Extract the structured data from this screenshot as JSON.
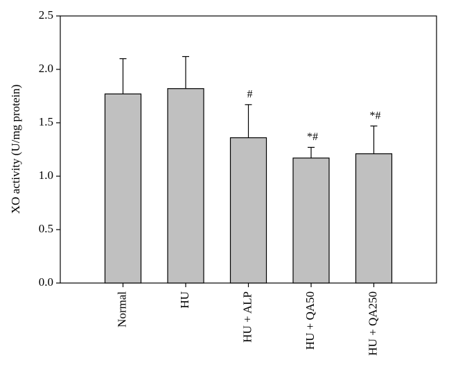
{
  "chart_data": {
    "type": "bar",
    "y_label": "XO activity (U/mg protein)",
    "categories": [
      "Normal",
      "HU",
      "HU + ALP",
      "HU + QA50",
      "HU + QA250"
    ],
    "values": [
      1.77,
      1.82,
      1.36,
      1.17,
      1.21
    ],
    "errors": [
      0.33,
      0.3,
      0.31,
      0.1,
      0.26
    ],
    "annotations": [
      null,
      null,
      "#",
      "*#",
      "*#"
    ],
    "color": "#c0c0c0",
    "ylim": [
      0,
      2.5
    ],
    "yticks": [
      {
        "value": 0,
        "label": "0.0"
      },
      0.5,
      {
        "value": 1,
        "label": "1.0"
      },
      1.5,
      {
        "value": 2,
        "label": "2.0"
      },
      2.5
    ]
  }
}
